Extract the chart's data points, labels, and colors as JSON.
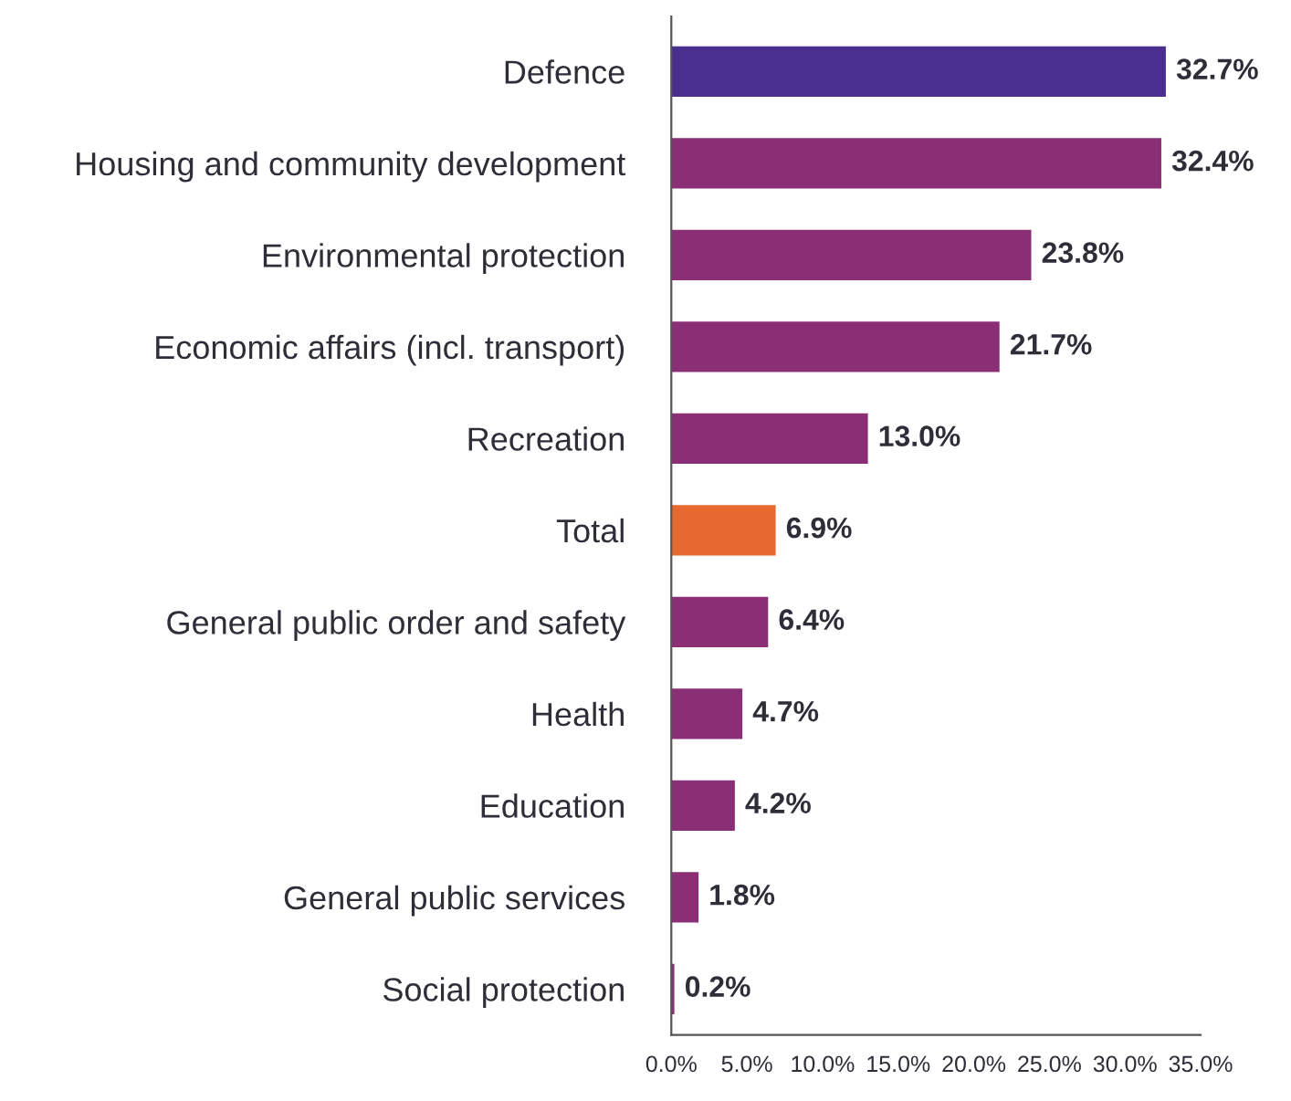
{
  "chart_data": {
    "type": "bar",
    "orientation": "horizontal",
    "categories": [
      "Defence",
      "Housing and community development",
      "Environmental protection",
      "Economic affairs (incl. transport)",
      "Recreation",
      "Total",
      "General public order and safety",
      "Health",
      "Education",
      "General public services",
      "Social protection"
    ],
    "values": [
      32.7,
      32.4,
      23.8,
      21.7,
      13.0,
      6.9,
      6.4,
      4.7,
      4.2,
      1.8,
      0.2
    ],
    "value_labels": [
      "32.7%",
      "32.4%",
      "23.8%",
      "21.7%",
      "13.0%",
      "6.9%",
      "6.4%",
      "4.7%",
      "4.2%",
      "1.8%",
      "0.2%"
    ],
    "colors": [
      "#4a2f8f",
      "#8a2e76",
      "#8a2e76",
      "#8a2e76",
      "#8a2e76",
      "#e66a30",
      "#8a2e76",
      "#8a2e76",
      "#8a2e76",
      "#8a2e76",
      "#8a2e76"
    ],
    "xlim": [
      0,
      35
    ],
    "xticks": [
      {
        "value": 0,
        "label": "0.0%"
      },
      {
        "value": 5,
        "label": "5.0%"
      },
      {
        "value": 10,
        "label": "10.0%"
      },
      {
        "value": 15,
        "label": "15.0%"
      },
      {
        "value": 20,
        "label": "20.0%"
      },
      {
        "value": 25,
        "label": "25.0%"
      },
      {
        "value": 30,
        "label": "30.0%"
      },
      {
        "value": 35,
        "label": "35.0%"
      }
    ],
    "grid": false,
    "legend": false
  }
}
